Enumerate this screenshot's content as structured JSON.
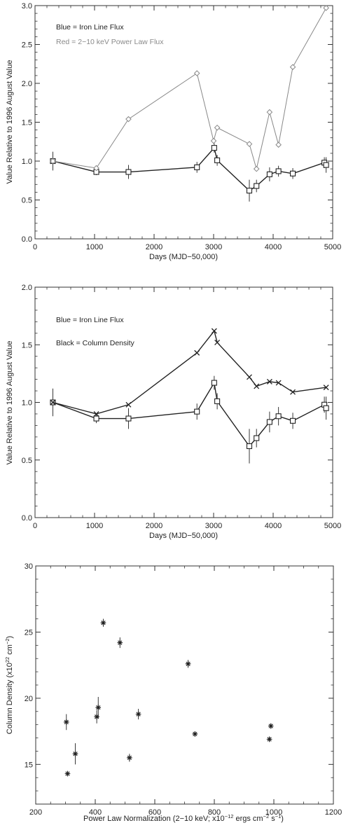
{
  "chart_data": [
    {
      "type": "line",
      "xlabel": "Days (MJD−50,000)",
      "ylabel": "Value Relative to 1996 August Value",
      "xlim": [
        0,
        5000
      ],
      "ylim": [
        0,
        3.0
      ],
      "x_ticks": [
        "0",
        "1000",
        "2000",
        "3000",
        "4000",
        "5000"
      ],
      "y_ticks": [
        "0.0",
        "0.5",
        "1.0",
        "1.5",
        "2.0",
        "2.5",
        "3.0"
      ],
      "legend": [
        "Blue = Iron Line Flux",
        "Red = 2−10 keV Power Law Flux"
      ],
      "grid": false,
      "series": [
        {
          "marker": "square",
          "x": [
            300,
            1030,
            1570,
            2720,
            3010,
            3060,
            3600,
            3720,
            3940,
            4090,
            4330,
            4860,
            4890
          ],
          "y": [
            1.0,
            0.86,
            0.86,
            0.92,
            1.17,
            1.01,
            0.62,
            0.68,
            0.83,
            0.87,
            0.84,
            0.98,
            0.95
          ],
          "err": [
            0.12,
            0.04,
            0.09,
            0.07,
            0.06,
            0.07,
            0.14,
            0.08,
            0.09,
            0.07,
            0.07,
            0.07,
            0.1
          ]
        },
        {
          "marker": "diamond",
          "color": "#888888",
          "x": [
            300,
            1030,
            1570,
            2720,
            3000,
            3060,
            3600,
            3720,
            3940,
            4090,
            4330,
            4890
          ],
          "y": [
            1.0,
            0.91,
            1.54,
            2.13,
            1.26,
            1.43,
            1.22,
            0.9,
            1.63,
            1.21,
            2.21,
            2.97
          ]
        }
      ]
    },
    {
      "type": "line",
      "xlabel": "Days (MJD−50,000)",
      "ylabel": "Value Relative to 1996 August Value",
      "xlim": [
        0,
        5000
      ],
      "ylim": [
        0,
        2.0
      ],
      "x_ticks": [
        "0",
        "1000",
        "2000",
        "3000",
        "4000",
        "5000"
      ],
      "y_ticks": [
        "0.0",
        "0.5",
        "1.0",
        "1.5",
        "2.0"
      ],
      "legend": [
        "Blue = Iron Line Flux",
        "Black = Column Density"
      ],
      "grid": false,
      "series": [
        {
          "marker": "square",
          "x": [
            300,
            1030,
            1570,
            2720,
            3010,
            3060,
            3600,
            3720,
            3940,
            4090,
            4330,
            4860,
            4890
          ],
          "y": [
            1.0,
            0.86,
            0.86,
            0.92,
            1.17,
            1.01,
            0.62,
            0.69,
            0.83,
            0.88,
            0.84,
            0.98,
            0.95
          ],
          "err": [
            0.12,
            0.04,
            0.09,
            0.07,
            0.06,
            0.07,
            0.15,
            0.08,
            0.09,
            0.08,
            0.07,
            0.07,
            0.1
          ]
        },
        {
          "marker": "x",
          "x": [
            300,
            1030,
            1570,
            2720,
            3010,
            3060,
            3600,
            3720,
            3940,
            4090,
            4330,
            4890
          ],
          "y": [
            1.0,
            0.9,
            0.98,
            1.43,
            1.62,
            1.52,
            1.22,
            1.14,
            1.18,
            1.17,
            1.09,
            1.13
          ]
        }
      ]
    },
    {
      "type": "scatter",
      "xlabel": "Power Law Normalization (2−10 keV; x10",
      "xlabel_sup1": "−12",
      "xlabel_mid": " ergs cm",
      "xlabel_sup2": "−2",
      "xlabel_mid2": " s",
      "xlabel_sup3": "−1",
      "xlabel_end": ")",
      "ylabel": "Column Density (x10",
      "ylabel_sup1": "22",
      "ylabel_mid": " cm",
      "ylabel_sup2": "−2",
      "ylabel_end": ")",
      "xlim": [
        200,
        1200
      ],
      "ylim": [
        12,
        30
      ],
      "x_ticks": [
        "200",
        "400",
        "600",
        "800",
        "1000",
        "1200"
      ],
      "y_ticks": [
        "15",
        "20",
        "25",
        "30"
      ],
      "grid": false,
      "series": [
        {
          "marker": "asterisk",
          "x": [
            303,
            307,
            333,
            405,
            410,
            427,
            483,
            515,
            545,
            712,
            735,
            985,
            990
          ],
          "y": [
            18.2,
            14.3,
            15.8,
            18.6,
            19.3,
            25.7,
            24.2,
            15.5,
            18.8,
            22.6,
            17.3,
            16.9,
            17.9
          ],
          "err": [
            0.6,
            0.2,
            0.8,
            0.5,
            0.8,
            0.3,
            0.4,
            0.3,
            0.4,
            0.3,
            0.2,
            0.2,
            0.2
          ]
        }
      ]
    }
  ]
}
